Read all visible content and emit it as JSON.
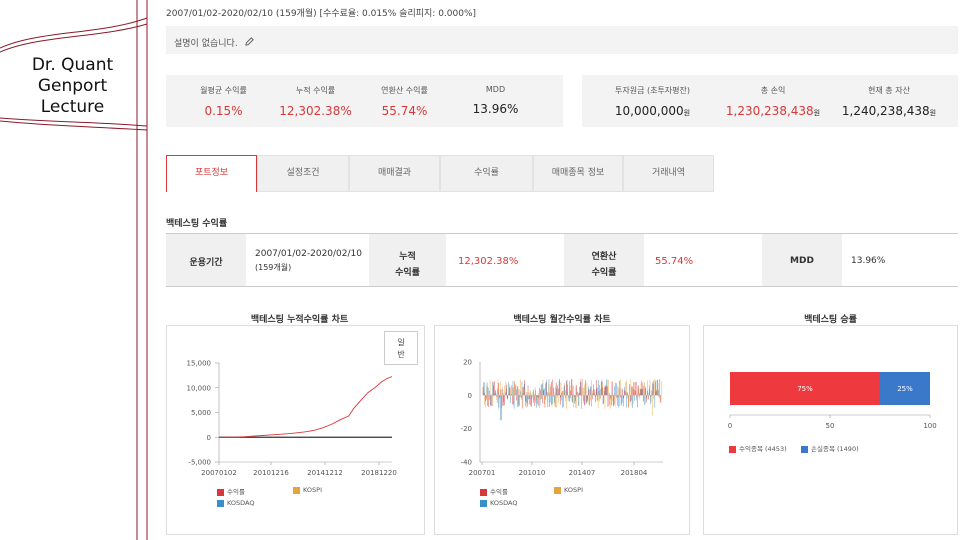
{
  "deco": {
    "title_lines": [
      "Dr. Quant",
      "Genport",
      "Lecture"
    ]
  },
  "header": {
    "info": "2007/01/02-2020/02/10 (159개월) [수수료율: 0.015% 슬리피지: 0.000%]",
    "description": "설명이 없습니다.",
    "edit_icon": "pencil-icon"
  },
  "summary_left": [
    {
      "label": "월평균 수익률",
      "value": "0.15%",
      "color": "red"
    },
    {
      "label": "누적 수익률",
      "value": "12,302.38%",
      "color": "red"
    },
    {
      "label": "연환산 수익률",
      "value": "55.74%",
      "color": "red"
    },
    {
      "label": "MDD",
      "value": "13.96%",
      "color": "dark"
    }
  ],
  "summary_right": [
    {
      "label": "투자원금 (초투자평잔)",
      "value": "10,000,000",
      "unit": "원",
      "color": "dark"
    },
    {
      "label": "총 손익",
      "value": "1,230,238,438",
      "unit": "원",
      "color": "red"
    },
    {
      "label": "현재 총 자산",
      "value": "1,240,238,438",
      "unit": "원",
      "color": "dark"
    }
  ],
  "tabs": [
    "포트정보",
    "설정조건",
    "매매결과",
    "수익률",
    "매매종목 정보",
    "거래내역"
  ],
  "active_tab": 0,
  "backtest": {
    "section_title": "백테스팅 수익률",
    "period_label": "운용기간",
    "period_value_1": "2007/01/02-2020/02/10",
    "period_value_2": "(159개월)",
    "cum_label_1": "누적",
    "cum_label_2": "수익률",
    "cum_value": "12,302.38%",
    "ann_label_1": "연환산",
    "ann_label_2": "수익률",
    "ann_value": "55.74%",
    "mdd_label": "MDD",
    "mdd_value": "13.96%"
  },
  "colors": {
    "accent": "#d9383a",
    "kospi": "#e8a33c",
    "kosdaq": "#3a8fc9",
    "win": "#ee3a3f",
    "loss": "#3a78c9"
  },
  "chart_data": [
    {
      "type": "line",
      "title": "백테스팅 누적수익률 차트",
      "toggle_label_1": "일",
      "toggle_label_2": "반",
      "x_ticks": [
        "20070102",
        "20101216",
        "20141212",
        "20181220"
      ],
      "y_ticks": [
        "15,000",
        "10,000",
        "5,000",
        "0",
        "-5,000"
      ],
      "ylim": [
        -5000,
        15000
      ],
      "series": [
        {
          "name": "수익률",
          "color": "#d9383a",
          "points": [
            [
              0,
              0
            ],
            [
              0.05,
              5
            ],
            [
              0.1,
              40
            ],
            [
              0.15,
              120
            ],
            [
              0.2,
              230
            ],
            [
              0.25,
              350
            ],
            [
              0.3,
              480
            ],
            [
              0.35,
              600
            ],
            [
              0.4,
              720
            ],
            [
              0.45,
              900
            ],
            [
              0.5,
              1100
            ],
            [
              0.55,
              1400
            ],
            [
              0.6,
              1900
            ],
            [
              0.65,
              2600
            ],
            [
              0.7,
              3500
            ],
            [
              0.75,
              4500
            ],
            [
              0.78,
              6000
            ],
            [
              0.82,
              7500
            ],
            [
              0.86,
              9000
            ],
            [
              0.9,
              10200
            ],
            [
              0.94,
              11000
            ],
            [
              0.97,
              11800
            ],
            [
              1.0,
              12302
            ]
          ]
        },
        {
          "name": "KOSPI",
          "color": "#e8a33c",
          "points": [
            [
              0,
              0
            ],
            [
              1,
              0
            ]
          ]
        },
        {
          "name": "KOSDAQ",
          "color": "#3a8fc9",
          "points": [
            [
              0,
              0
            ],
            [
              1,
              0
            ]
          ]
        }
      ]
    },
    {
      "type": "bar",
      "title": "백테스팅 월간수익률 차트",
      "x_ticks": [
        "200701",
        "201010",
        "201407",
        "201804"
      ],
      "y_ticks": [
        "20",
        "0",
        "-20",
        "-40"
      ],
      "ylim": [
        -40,
        20
      ],
      "series": [
        {
          "name": "수익률",
          "color": "#d9383a"
        },
        {
          "name": "KOSPI",
          "color": "#e8a33c"
        },
        {
          "name": "KOSDAQ",
          "color": "#3a8fc9"
        }
      ]
    },
    {
      "type": "bar",
      "title": "백테스팅 승률",
      "x_ticks": [
        "0",
        "50",
        "100"
      ],
      "xlim": [
        0,
        100
      ],
      "series": [
        {
          "name": "수익종목",
          "count": "(4453)",
          "value": 75,
          "label": "75%",
          "color": "#ee3a3f"
        },
        {
          "name": "손실종목",
          "count": "(1490)",
          "value": 25,
          "label": "25%",
          "color": "#3a78c9"
        }
      ]
    }
  ]
}
